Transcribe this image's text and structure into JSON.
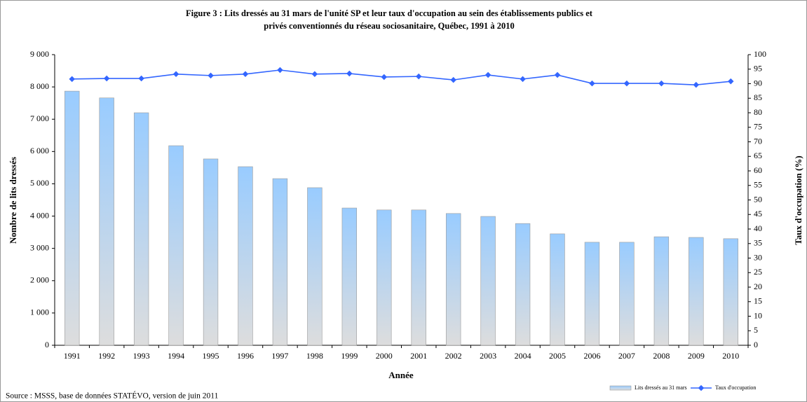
{
  "chart_data": {
    "type": "bar-line",
    "title": "Figure 3 : Lits dressés au 31 mars de l'unité SP et leur taux d'occupation au sein des établissements publics et",
    "subtitle": "privés conventionnés du réseau sociosanitaire, Québec, 1991 à 2010",
    "xlabel": "Année",
    "ylabel": "Nombre de lits dressés",
    "y2label": "Taux d'occupation (%)",
    "source": "Source : MSSS, base de données STATÉVO, version de juin 2011",
    "categories": [
      "1991",
      "1992",
      "1993",
      "1994",
      "1995",
      "1996",
      "1997",
      "1998",
      "1999",
      "2000",
      "2001",
      "2002",
      "2003",
      "2004",
      "2005",
      "2006",
      "2007",
      "2008",
      "2009",
      "2010"
    ],
    "series": [
      {
        "name": "Lits dressés au 31 mars",
        "type": "bar",
        "color": "#99ccff",
        "values": [
          7870,
          7660,
          7200,
          6180,
          5770,
          5530,
          5160,
          4880,
          4250,
          4190,
          4190,
          4080,
          3990,
          3770,
          3450,
          3190,
          3190,
          3360,
          3340,
          3300
        ]
      },
      {
        "name": "Taux d'occupation",
        "type": "line",
        "axis": "y2",
        "color": "#3366ff",
        "values": [
          91.6,
          91.8,
          91.8,
          93.3,
          92.8,
          93.3,
          94.7,
          93.3,
          93.5,
          92.3,
          92.5,
          91.3,
          93.0,
          91.6,
          93.0,
          90.1,
          90.1,
          90.1,
          89.6,
          90.8
        ]
      }
    ],
    "ylim": [
      0,
      9000
    ],
    "yticks": [
      0,
      {
        "value": 1000,
        "label": "1 000"
      },
      {
        "value": 2000,
        "label": "2 000"
      },
      {
        "value": 3000,
        "label": "3 000"
      },
      {
        "value": 4000,
        "label": "4 000"
      },
      {
        "value": 5000,
        "label": "5 000"
      },
      {
        "value": 6000,
        "label": "6 000"
      },
      {
        "value": 7000,
        "label": "7 000"
      },
      {
        "value": 8000,
        "label": "8 000"
      },
      {
        "value": 9000,
        "label": "9 000"
      }
    ],
    "y2lim": [
      0,
      100
    ],
    "y2ticks": [
      0,
      5,
      10,
      15,
      20,
      25,
      30,
      35,
      40,
      45,
      50,
      55,
      60,
      65,
      70,
      75,
      80,
      85,
      90,
      95,
      100
    ],
    "legend": "bottom-right",
    "grid": false
  }
}
